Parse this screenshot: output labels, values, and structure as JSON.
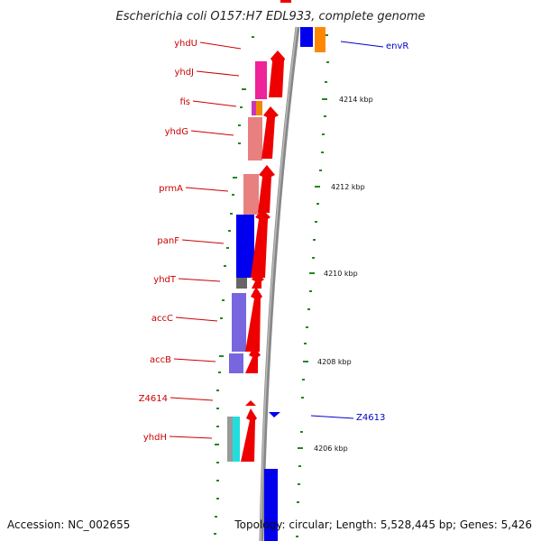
{
  "title": "Escherichia coli O157:H7 EDL933, complete genome",
  "footer": {
    "accession": "Accession: NC_002655",
    "summary": "Topology: circular; Length: 5,528,445 bp; Genes: 5,426"
  },
  "colors": {
    "backbone": "#888888",
    "forward_gene": "#ee0000",
    "reverse_gene": "#0000ee",
    "left_label": "#cc0000",
    "right_label": "#0000cc",
    "tick": "#228822"
  },
  "ticks": [
    {
      "label": "4214 kbp"
    },
    {
      "label": "4212 kbp"
    },
    {
      "label": "4210 kbp"
    },
    {
      "label": "4208 kbp"
    },
    {
      "label": "4206 kbp"
    }
  ],
  "genes_left": [
    {
      "label": "yhdU"
    },
    {
      "label": "yhdJ"
    },
    {
      "label": "fis"
    },
    {
      "label": "yhdG"
    },
    {
      "label": "prmA"
    },
    {
      "label": "panF"
    },
    {
      "label": "yhdT"
    },
    {
      "label": "accC"
    },
    {
      "label": "accB"
    },
    {
      "label": "Z4614"
    },
    {
      "label": "yhdH"
    }
  ],
  "genes_right": [
    {
      "label": "envR"
    },
    {
      "label": "Z4613"
    }
  ]
}
